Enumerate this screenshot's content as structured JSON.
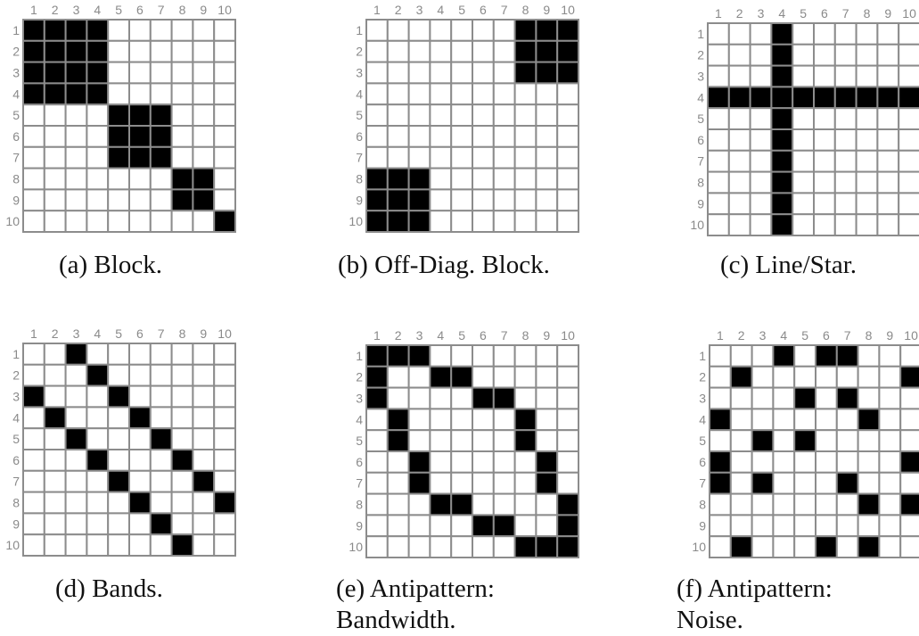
{
  "panels": [
    {
      "id": "a",
      "caption": "(a) Block.",
      "cols": [
        "1",
        "2",
        "3",
        "4",
        "5",
        "6",
        "7",
        "8",
        "9",
        "10"
      ],
      "rows": [
        "1",
        "2",
        "3",
        "4",
        "5",
        "6",
        "7",
        "8",
        "9",
        "10"
      ],
      "filled": [
        [
          1,
          1
        ],
        [
          1,
          2
        ],
        [
          1,
          3
        ],
        [
          1,
          4
        ],
        [
          2,
          1
        ],
        [
          2,
          2
        ],
        [
          2,
          3
        ],
        [
          2,
          4
        ],
        [
          3,
          1
        ],
        [
          3,
          2
        ],
        [
          3,
          3
        ],
        [
          3,
          4
        ],
        [
          4,
          1
        ],
        [
          4,
          2
        ],
        [
          4,
          3
        ],
        [
          4,
          4
        ],
        [
          5,
          5
        ],
        [
          5,
          6
        ],
        [
          5,
          7
        ],
        [
          6,
          5
        ],
        [
          6,
          6
        ],
        [
          6,
          7
        ],
        [
          7,
          5
        ],
        [
          7,
          6
        ],
        [
          7,
          7
        ],
        [
          8,
          8
        ],
        [
          8,
          9
        ],
        [
          9,
          8
        ],
        [
          9,
          9
        ],
        [
          10,
          10
        ]
      ]
    },
    {
      "id": "b",
      "caption": "(b) Off-Diag. Block.",
      "cols": [
        "1",
        "2",
        "3",
        "4",
        "5",
        "6",
        "7",
        "8",
        "9",
        "10"
      ],
      "rows": [
        "1",
        "2",
        "3",
        "4",
        "5",
        "6",
        "7",
        "8",
        "9",
        "10"
      ],
      "filled": [
        [
          1,
          8
        ],
        [
          1,
          9
        ],
        [
          1,
          10
        ],
        [
          2,
          8
        ],
        [
          2,
          9
        ],
        [
          2,
          10
        ],
        [
          3,
          8
        ],
        [
          3,
          9
        ],
        [
          3,
          10
        ],
        [
          8,
          1
        ],
        [
          8,
          2
        ],
        [
          8,
          3
        ],
        [
          9,
          1
        ],
        [
          9,
          2
        ],
        [
          9,
          3
        ],
        [
          10,
          1
        ],
        [
          10,
          2
        ],
        [
          10,
          3
        ]
      ]
    },
    {
      "id": "c",
      "caption": "(c) Line/Star.",
      "cols": [
        "1",
        "2",
        "3",
        "4",
        "5",
        "6",
        "7",
        "8",
        "9",
        "10"
      ],
      "rows": [
        "1",
        "2",
        "3",
        "4",
        "5",
        "6",
        "7",
        "8",
        "9",
        "10"
      ],
      "filled": [
        [
          1,
          4
        ],
        [
          2,
          4
        ],
        [
          3,
          4
        ],
        [
          5,
          4
        ],
        [
          6,
          4
        ],
        [
          7,
          4
        ],
        [
          8,
          4
        ],
        [
          9,
          4
        ],
        [
          10,
          4
        ],
        [
          4,
          1
        ],
        [
          4,
          2
        ],
        [
          4,
          3
        ],
        [
          4,
          4
        ],
        [
          4,
          5
        ],
        [
          4,
          6
        ],
        [
          4,
          7
        ],
        [
          4,
          8
        ],
        [
          4,
          9
        ],
        [
          4,
          10
        ]
      ]
    },
    {
      "id": "d",
      "caption": "(d) Bands.",
      "cols": [
        "1",
        "2",
        "3",
        "4",
        "5",
        "6",
        "7",
        "8",
        "9",
        "10"
      ],
      "rows": [
        "1",
        "2",
        "3",
        "4",
        "5",
        "6",
        "7",
        "8",
        "9",
        "10"
      ],
      "filled": [
        [
          1,
          3
        ],
        [
          2,
          4
        ],
        [
          3,
          5
        ],
        [
          4,
          6
        ],
        [
          5,
          7
        ],
        [
          6,
          8
        ],
        [
          7,
          9
        ],
        [
          8,
          10
        ],
        [
          3,
          1
        ],
        [
          4,
          2
        ],
        [
          5,
          3
        ],
        [
          6,
          4
        ],
        [
          7,
          5
        ],
        [
          8,
          6
        ],
        [
          9,
          7
        ],
        [
          10,
          8
        ]
      ]
    },
    {
      "id": "e",
      "caption": "(e) Antipattern:\nBandwidth.",
      "cols": [
        "1",
        "2",
        "3",
        "4",
        "5",
        "6",
        "7",
        "8",
        "9",
        "10"
      ],
      "rows": [
        "1",
        "2",
        "3",
        "4",
        "5",
        "6",
        "7",
        "8",
        "9",
        "10"
      ],
      "filled": [
        [
          1,
          1
        ],
        [
          1,
          2
        ],
        [
          1,
          3
        ],
        [
          2,
          1
        ],
        [
          2,
          4
        ],
        [
          2,
          5
        ],
        [
          3,
          1
        ],
        [
          3,
          6
        ],
        [
          3,
          7
        ],
        [
          4,
          2
        ],
        [
          4,
          8
        ],
        [
          5,
          2
        ],
        [
          5,
          8
        ],
        [
          6,
          3
        ],
        [
          6,
          9
        ],
        [
          7,
          3
        ],
        [
          7,
          9
        ],
        [
          8,
          4
        ],
        [
          8,
          5
        ],
        [
          8,
          10
        ],
        [
          9,
          6
        ],
        [
          9,
          7
        ],
        [
          9,
          10
        ],
        [
          10,
          8
        ],
        [
          10,
          9
        ],
        [
          10,
          10
        ]
      ]
    },
    {
      "id": "f",
      "caption": "(f) Antipattern:\nNoise.",
      "cols": [
        "1",
        "2",
        "3",
        "4",
        "5",
        "6",
        "7",
        "8",
        "9",
        "10"
      ],
      "rows": [
        "1",
        "2",
        "3",
        "4",
        "5",
        "6",
        "7",
        "8",
        "9",
        "10"
      ],
      "filled": [
        [
          1,
          4
        ],
        [
          1,
          6
        ],
        [
          1,
          7
        ],
        [
          2,
          2
        ],
        [
          2,
          10
        ],
        [
          3,
          5
        ],
        [
          3,
          7
        ],
        [
          4,
          1
        ],
        [
          4,
          8
        ],
        [
          5,
          3
        ],
        [
          5,
          5
        ],
        [
          6,
          1
        ],
        [
          6,
          10
        ],
        [
          7,
          1
        ],
        [
          7,
          3
        ],
        [
          7,
          7
        ],
        [
          8,
          8
        ],
        [
          8,
          10
        ],
        [
          10,
          2
        ],
        [
          10,
          6
        ],
        [
          10,
          8
        ]
      ]
    }
  ]
}
